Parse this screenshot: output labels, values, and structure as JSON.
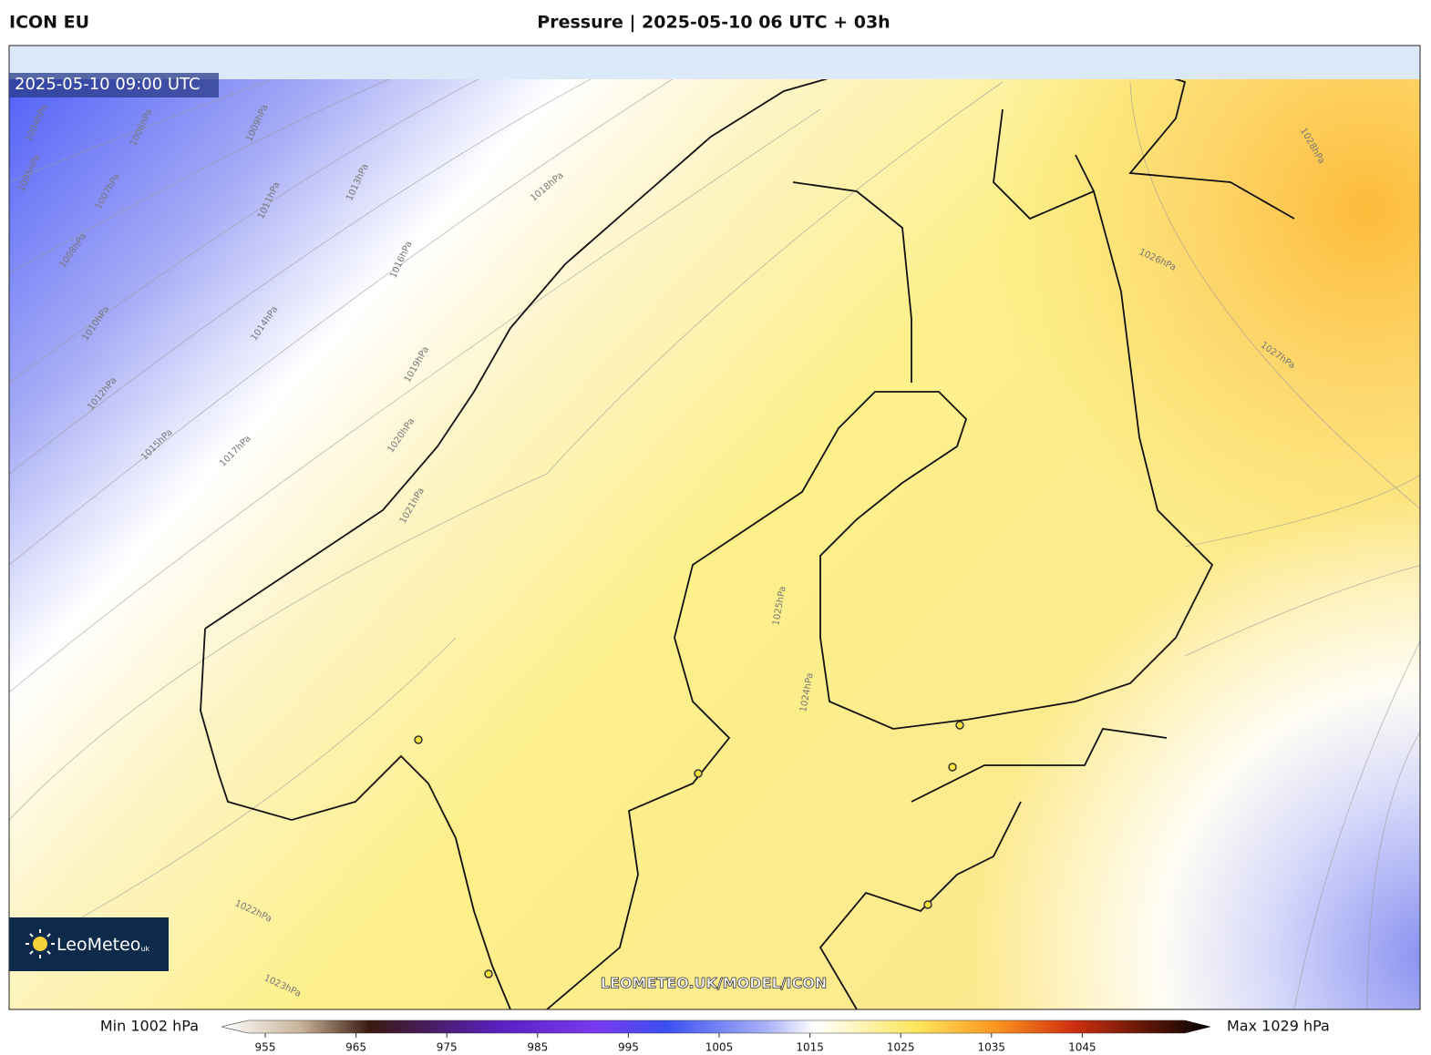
{
  "header": {
    "left": "ICON EU",
    "title": "Pressure | 2025-05-10 06 UTC + 03h"
  },
  "map": {
    "timestamp": "2025-05-10 09:00 UTC",
    "watermark": "LEOMETEO.UK/MODEL/ICON",
    "logo": "LeoMeteo",
    "logo_suffix": "uk",
    "contour_labels": [
      "1004hPa",
      "1005hPa",
      "1006hPa",
      "1007hPa",
      "1008hPa",
      "1009hPa",
      "1010hPa",
      "1011hPa",
      "1012hPa",
      "1013hPa",
      "1014hPa",
      "1015hPa",
      "1016hPa",
      "1017hPa",
      "1018hPa",
      "1019hPa",
      "1020hPa",
      "1021hPa",
      "1022hPa",
      "1023hPa",
      "1024hPa",
      "1025hPa",
      "1026hPa",
      "1027hPa",
      "1028hPa"
    ]
  },
  "colorbar": {
    "min_label": "Min 1002 hPa",
    "max_label": "Max 1029 hPa",
    "ticks": [
      955,
      965,
      975,
      985,
      995,
      1005,
      1015,
      1025,
      1035,
      1045
    ]
  }
}
